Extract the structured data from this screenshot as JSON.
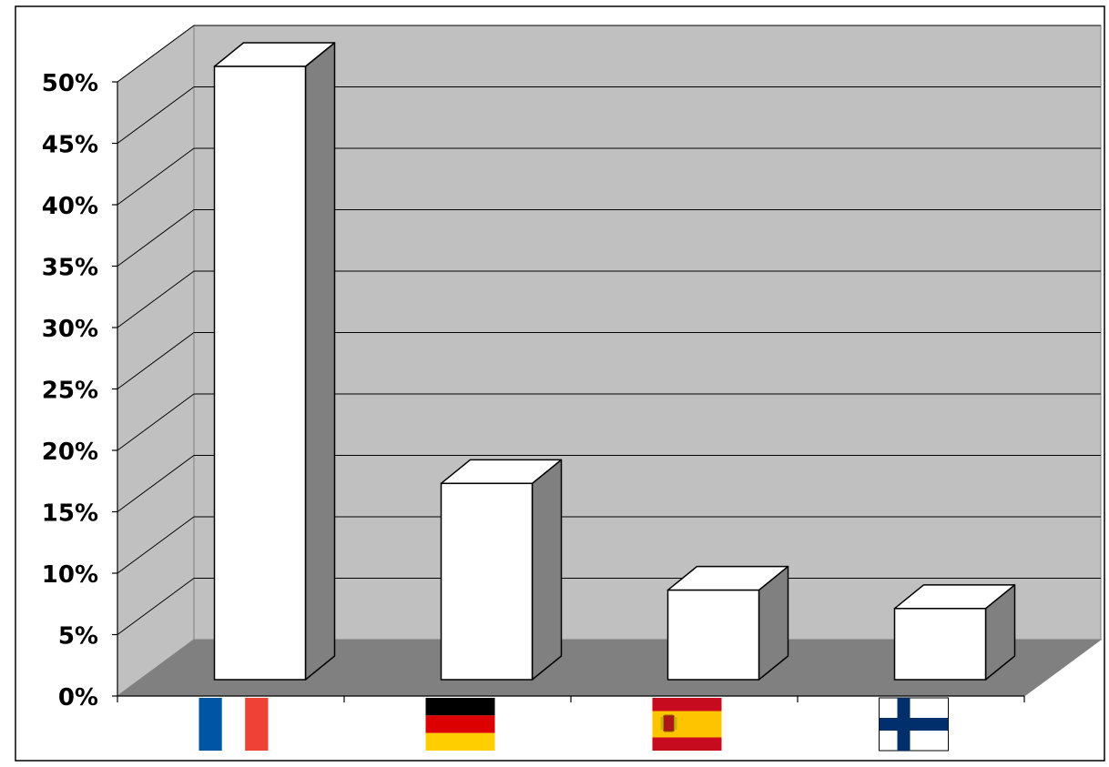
{
  "chart_data": {
    "type": "bar",
    "style": "3d",
    "categories": [
      "France",
      "Germany",
      "Spain",
      "Finland"
    ],
    "category_display": "flag-icons",
    "category_icons": [
      "france-flag-icon",
      "germany-flag-icon",
      "spain-flag-icon",
      "finland-flag-icon"
    ],
    "values": [
      50,
      16,
      7.3,
      5.8
    ],
    "value_unit": "%",
    "title": "",
    "xlabel": "",
    "ylabel": "",
    "ylim": [
      0,
      50
    ],
    "yticks": [
      "0%",
      "5%",
      "10%",
      "15%",
      "20%",
      "25%",
      "30%",
      "35%",
      "40%",
      "45%",
      "50%"
    ],
    "grid": true,
    "legend": "none",
    "colors": {
      "wall": "#c0c0c0",
      "floor": "#808080",
      "bar_front": "#ffffff",
      "bar_top": "#ffffff",
      "bar_side": "#808080",
      "outline": "#000000"
    }
  }
}
